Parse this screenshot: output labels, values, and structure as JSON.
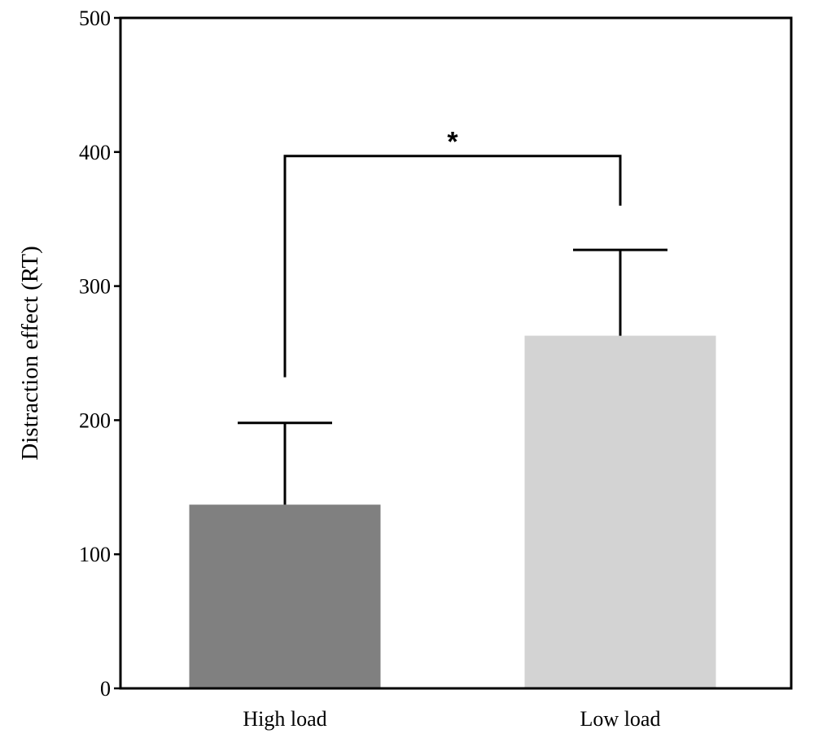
{
  "chart_data": {
    "type": "bar",
    "categories": [
      "High load",
      "Low load"
    ],
    "values": [
      137,
      263
    ],
    "error_upper": [
      198,
      327
    ],
    "bar_colors": [
      "#808080",
      "#d3d3d3"
    ],
    "xlabel": "",
    "ylabel": "Distraction effect (RT)",
    "ylim": [
      0,
      500
    ],
    "yticks": [
      "0",
      "100",
      "200",
      "300",
      "400",
      "500"
    ],
    "grid": false,
    "legend": "none",
    "significance": {
      "label": "*",
      "between": [
        "High load",
        "Low load"
      ],
      "bracket_y": 397,
      "left_drop_to": 232,
      "right_drop_to": 360
    }
  }
}
